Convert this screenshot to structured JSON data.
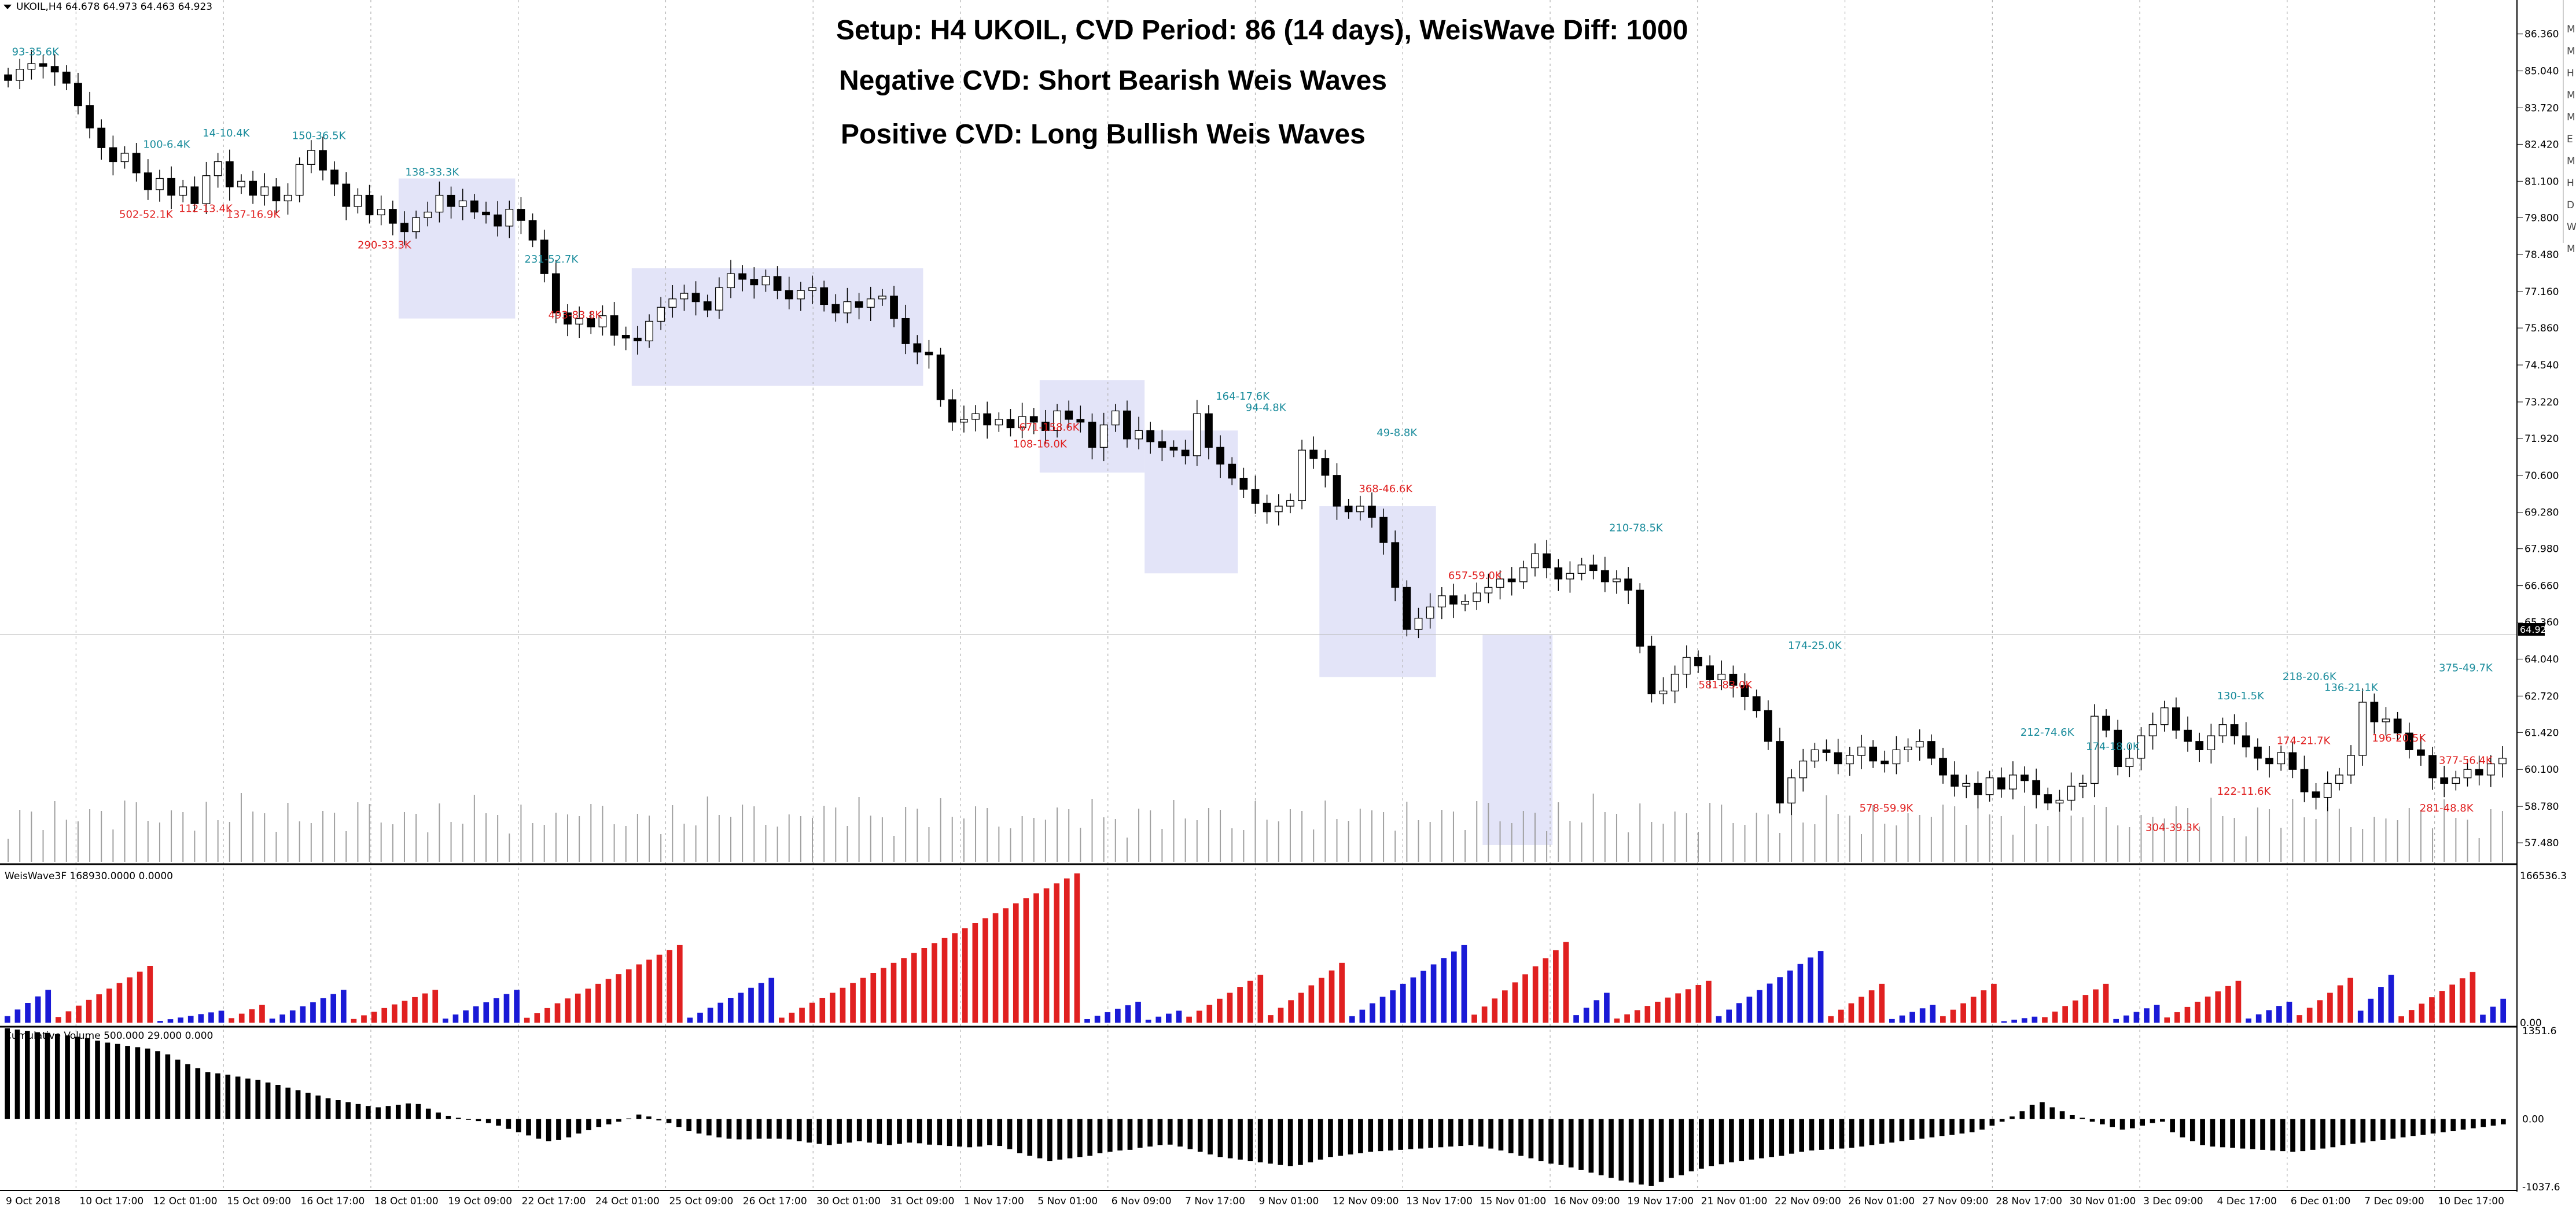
{
  "header": {
    "symbol_caption": "UKOIL,H4  64.678 64.973 64.463 64.923",
    "menu_icon": "triangle-down-icon"
  },
  "setup_text": {
    "line1": "Setup: H4 UKOIL, CVD Period: 86 (14 days), WeisWave Diff: 1000",
    "line2": "Negative CVD: Short Bearish Weis Waves",
    "line3": "Positive CVD: Long Bullish Weis Waves"
  },
  "right_toolbar_letters": [
    "M",
    "M",
    "H",
    "M",
    "M",
    "E",
    "M",
    "H",
    "D",
    "W",
    "M"
  ],
  "colors": {
    "bull_wave": "#1a1ad6",
    "bear_wave": "#e02020",
    "wave_label_up": "#1a8c9c",
    "wave_label_down": "#e02020",
    "highlight_box": "#e3e4f8",
    "bear_candle": "#000000",
    "bull_candle": "#ffffff"
  },
  "chart_data": [
    {
      "type": "candlestick",
      "panel": "price",
      "symbol": "UKOIL",
      "timeframe": "H4",
      "last_ohlc": {
        "open": 64.678,
        "high": 64.973,
        "low": 64.463,
        "close": 64.923
      },
      "current_price_label": "64.923",
      "current_price": 64.923,
      "ylim": [
        56.8,
        87.2
      ],
      "y_ticks": [
        "86.360",
        "85.040",
        "83.720",
        "82.420",
        "81.100",
        "79.800",
        "78.480",
        "77.160",
        "75.860",
        "74.540",
        "73.220",
        "71.920",
        "70.600",
        "69.280",
        "67.980",
        "66.660",
        "65.360",
        "64.040",
        "62.720",
        "61.420",
        "60.100",
        "58.780",
        "57.480"
      ],
      "x_ticks": [
        "9 Oct 2018",
        "10 Oct 17:00",
        "12 Oct 01:00",
        "15 Oct 09:00",
        "16 Oct 17:00",
        "18 Oct 01:00",
        "19 Oct 09:00",
        "22 Oct 17:00",
        "24 Oct 01:00",
        "25 Oct 09:00",
        "26 Oct 17:00",
        "30 Oct 01:00",
        "31 Oct 09:00",
        "1 Nov 17:00",
        "5 Nov 01:00",
        "6 Nov 09:00",
        "7 Nov 17:00",
        "9 Nov 01:00",
        "12 Nov 09:00",
        "13 Nov 17:00",
        "15 Nov 01:00",
        "16 Nov 09:00",
        "19 Nov 17:00",
        "21 Nov 01:00",
        "22 Nov 09:00",
        "26 Nov 01:00",
        "27 Nov 09:00",
        "28 Nov 17:00",
        "30 Nov 01:00",
        "3 Dec 09:00",
        "4 Dec 17:00",
        "6 Dec 01:00",
        "7 Dec 09:00",
        "10 Dec 17:00"
      ],
      "closes": [
        84.7,
        85.1,
        85.3,
        85.2,
        85.0,
        84.6,
        83.8,
        83.0,
        82.3,
        81.8,
        82.1,
        81.4,
        80.8,
        81.2,
        80.6,
        80.9,
        80.3,
        81.3,
        81.8,
        80.9,
        81.1,
        80.6,
        80.9,
        80.4,
        80.6,
        81.7,
        82.2,
        81.5,
        81.0,
        80.2,
        80.6,
        79.9,
        80.1,
        79.6,
        79.3,
        79.8,
        80.0,
        80.6,
        80.2,
        80.4,
        80.0,
        79.9,
        79.5,
        80.1,
        79.7,
        79.0,
        77.8,
        76.4,
        76.0,
        76.2,
        75.9,
        76.3,
        75.6,
        75.5,
        75.4,
        76.1,
        76.6,
        76.9,
        77.1,
        76.8,
        76.5,
        77.3,
        77.8,
        77.6,
        77.4,
        77.7,
        77.2,
        76.9,
        77.2,
        77.3,
        76.7,
        76.4,
        76.8,
        76.6,
        76.9,
        77.0,
        76.2,
        75.3,
        75.0,
        74.9,
        73.3,
        72.5,
        72.6,
        72.8,
        72.4,
        72.6,
        72.3,
        72.7,
        72.5,
        72.2,
        72.9,
        72.6,
        72.5,
        71.6,
        72.4,
        72.9,
        71.9,
        72.2,
        71.8,
        71.6,
        71.5,
        71.3,
        72.8,
        71.6,
        71.0,
        70.5,
        70.1,
        69.6,
        69.3,
        69.5,
        69.7,
        71.5,
        71.2,
        70.6,
        69.5,
        69.3,
        69.5,
        69.1,
        68.2,
        66.6,
        65.1,
        65.5,
        65.9,
        66.3,
        66.0,
        66.1,
        66.4,
        66.6,
        66.9,
        66.8,
        67.3,
        67.8,
        67.3,
        66.9,
        67.1,
        67.4,
        67.2,
        66.8,
        66.9,
        66.5,
        64.5,
        62.8,
        62.9,
        63.5,
        64.1,
        63.8,
        63.3,
        63.5,
        63.1,
        62.7,
        62.2,
        61.1,
        58.9,
        59.8,
        60.4,
        60.8,
        60.7,
        60.3,
        60.6,
        60.9,
        60.4,
        60.3,
        60.8,
        60.9,
        61.1,
        60.5,
        59.9,
        59.5,
        59.6,
        59.2,
        59.8,
        59.4,
        59.9,
        59.7,
        59.2,
        58.9,
        59.0,
        59.5,
        59.6,
        62.0,
        61.5,
        60.2,
        60.5,
        61.3,
        61.7,
        62.3,
        61.5,
        61.1,
        60.8,
        61.3,
        61.7,
        61.3,
        60.9,
        60.5,
        60.3,
        60.7,
        60.1,
        59.3,
        59.1,
        59.6,
        59.9,
        60.6,
        62.5,
        61.8,
        61.9,
        61.4,
        60.8,
        60.6,
        59.8,
        59.6,
        59.8,
        60.1,
        59.9,
        60.3,
        60.5
      ],
      "wave_labels": [
        {
          "text": "93-35.6K",
          "dir": "up"
        },
        {
          "text": "100-6.4K",
          "dir": "up"
        },
        {
          "text": "14-10.4K",
          "dir": "up"
        },
        {
          "text": "150-36.5K",
          "dir": "up"
        },
        {
          "text": "138-33.3K",
          "dir": "up"
        },
        {
          "text": "502-52.1K",
          "dir": "down"
        },
        {
          "text": "112-13.4K",
          "dir": "down"
        },
        {
          "text": "137-16.9K",
          "dir": "down"
        },
        {
          "text": "290-33.3K",
          "dir": "down"
        },
        {
          "text": "493-83.8K",
          "dir": "down"
        },
        {
          "text": "231-52.7K",
          "dir": "up"
        },
        {
          "text": "671-158.6K",
          "dir": "down"
        },
        {
          "text": "164-17.6K",
          "dir": "up"
        },
        {
          "text": "108-16.0K",
          "dir": "down"
        },
        {
          "text": "94-4.8K",
          "dir": "up"
        },
        {
          "text": "49-8.8K",
          "dir": "up"
        },
        {
          "text": "368-46.6K",
          "dir": "down"
        },
        {
          "text": "657-59.0K",
          "dir": "down"
        },
        {
          "text": "210-78.5K",
          "dir": "up"
        },
        {
          "text": "581-83.0K",
          "dir": "down"
        },
        {
          "text": "174-25.0K",
          "dir": "up"
        },
        {
          "text": "578-59.9K",
          "dir": "down"
        },
        {
          "text": "212-74.6K",
          "dir": "up"
        },
        {
          "text": "174-18.0K",
          "dir": "up"
        },
        {
          "text": "304-39.3K",
          "dir": "down"
        },
        {
          "text": "122-11.6K",
          "dir": "down"
        },
        {
          "text": "130-1.5K",
          "dir": "up"
        },
        {
          "text": "218-20.6K",
          "dir": "up"
        },
        {
          "text": "174-21.7K",
          "dir": "down"
        },
        {
          "text": "136-21.1K",
          "dir": "up"
        },
        {
          "text": "196-20.5K",
          "dir": "down"
        },
        {
          "text": "375-49.7K",
          "dir": "up"
        },
        {
          "text": "281-48.8K",
          "dir": "down"
        },
        {
          "text": "377-56.4K",
          "dir": "down"
        }
      ],
      "highlight_zones": 8
    },
    {
      "type": "bar",
      "panel": "weiswave",
      "title": "WeisWave3F 168930.0000 0.0000",
      "y_ticks": [
        "166536.3",
        "0.00"
      ],
      "waves": [
        {
          "dir": "bull",
          "n": 5,
          "peak": 0.22
        },
        {
          "dir": "bear",
          "n": 10,
          "peak": 0.38
        },
        {
          "dir": "bull",
          "n": 7,
          "peak": 0.08
        },
        {
          "dir": "bear",
          "n": 4,
          "peak": 0.12
        },
        {
          "dir": "bull",
          "n": 8,
          "peak": 0.22
        },
        {
          "dir": "bear",
          "n": 9,
          "peak": 0.22
        },
        {
          "dir": "bull",
          "n": 8,
          "peak": 0.22
        },
        {
          "dir": "bear",
          "n": 16,
          "peak": 0.52
        },
        {
          "dir": "bull",
          "n": 9,
          "peak": 0.3
        },
        {
          "dir": "bear",
          "n": 30,
          "peak": 1.0
        },
        {
          "dir": "bull",
          "n": 6,
          "peak": 0.14
        },
        {
          "dir": "bull",
          "n": 4,
          "peak": 0.08
        },
        {
          "dir": "bear",
          "n": 8,
          "peak": 0.32
        },
        {
          "dir": "bear",
          "n": 8,
          "peak": 0.4
        },
        {
          "dir": "bull",
          "n": 12,
          "peak": 0.52
        },
        {
          "dir": "bear",
          "n": 10,
          "peak": 0.54
        },
        {
          "dir": "bull",
          "n": 4,
          "peak": 0.2
        },
        {
          "dir": "bear",
          "n": 10,
          "peak": 0.28
        },
        {
          "dir": "bull",
          "n": 11,
          "peak": 0.48
        },
        {
          "dir": "bear",
          "n": 6,
          "peak": 0.26
        },
        {
          "dir": "bull",
          "n": 5,
          "peak": 0.12
        },
        {
          "dir": "bear",
          "n": 6,
          "peak": 0.26
        },
        {
          "dir": "bull",
          "n": 4,
          "peak": 0.04
        },
        {
          "dir": "bear",
          "n": 7,
          "peak": 0.26
        },
        {
          "dir": "bull",
          "n": 5,
          "peak": 0.12
        },
        {
          "dir": "bear",
          "n": 8,
          "peak": 0.28
        },
        {
          "dir": "bull",
          "n": 5,
          "peak": 0.14
        },
        {
          "dir": "bear",
          "n": 6,
          "peak": 0.3
        },
        {
          "dir": "bull",
          "n": 4,
          "peak": 0.32
        },
        {
          "dir": "bear",
          "n": 8,
          "peak": 0.34
        },
        {
          "dir": "bull",
          "n": 3,
          "peak": 0.16
        }
      ]
    },
    {
      "type": "bar",
      "panel": "cumulative_volume",
      "title": "Cumulative Volume 500.000 29.000 0.000",
      "y_ticks": [
        "1351.6",
        "0.00",
        "-1037.6"
      ],
      "ylim": [
        -1037.6,
        1351.6
      ],
      "values": [
        1390,
        1370,
        1350,
        1330,
        1320,
        1300,
        1280,
        1260,
        1240,
        1200,
        1170,
        1150,
        1120,
        1100,
        1080,
        1040,
        990,
        910,
        840,
        780,
        720,
        700,
        680,
        650,
        620,
        600,
        560,
        520,
        480,
        440,
        400,
        360,
        320,
        290,
        260,
        230,
        200,
        180,
        200,
        220,
        240,
        230,
        160,
        100,
        50,
        20,
        -10,
        -30,
        -60,
        -100,
        -150,
        -200,
        -250,
        -300,
        -340,
        -320,
        -280,
        -220,
        -170,
        -120,
        -80,
        -40,
        10,
        70,
        40,
        -20,
        -60,
        -120,
        -180,
        -220,
        -250,
        -280,
        -300,
        -310,
        -310,
        -300,
        -300,
        -300,
        -310,
        -340,
        -360,
        -380,
        -400,
        -380,
        -360,
        -340,
        -360,
        -380,
        -400,
        -380,
        -360,
        -370,
        -390,
        -400,
        -410,
        -420,
        -430,
        -420,
        -400,
        -410,
        -460,
        -520,
        -560,
        -600,
        -640,
        -620,
        -600,
        -580,
        -560,
        -520,
        -500,
        -480,
        -470,
        -440,
        -420,
        -400,
        -390,
        -420,
        -460,
        -500,
        -540,
        -580,
        -600,
        -620,
        -640,
        -660,
        -680,
        -700,
        -720,
        -700,
        -660,
        -620,
        -580,
        -560,
        -540,
        -520,
        -500,
        -490,
        -480,
        -470,
        -460,
        -450,
        -440,
        -430,
        -420,
        -410,
        -400,
        -420,
        -450,
        -480,
        -520,
        -560,
        -600,
        -640,
        -680,
        -700,
        -740,
        -780,
        -820,
        -860,
        -900,
        -940,
        -970,
        -1000,
        -1020,
        -960,
        -900,
        -860,
        -800,
        -760,
        -720,
        -690,
        -660,
        -640,
        -620,
        -600,
        -580,
        -560,
        -530,
        -500,
        -480,
        -470,
        -460,
        -450,
        -440,
        -420,
        -400,
        -380,
        -360,
        -340,
        -320,
        -300,
        -280,
        -260,
        -240,
        -220,
        -200,
        -160,
        -100,
        -40,
        40,
        120,
        220,
        260,
        180,
        120,
        60,
        20,
        -40,
        -80,
        -120,
        -160,
        -140,
        -100,
        -60,
        -40,
        -200,
        -280,
        -340,
        -400,
        -420,
        -430,
        -440,
        -450,
        -460,
        -470,
        -480,
        -490,
        -500,
        -490,
        -470,
        -450,
        -430,
        -400,
        -380,
        -360,
        -340,
        -320,
        -300,
        -280,
        -260,
        -240,
        -220,
        -200,
        -180,
        -160,
        -140,
        -120,
        -100,
        -80
      ]
    }
  ]
}
